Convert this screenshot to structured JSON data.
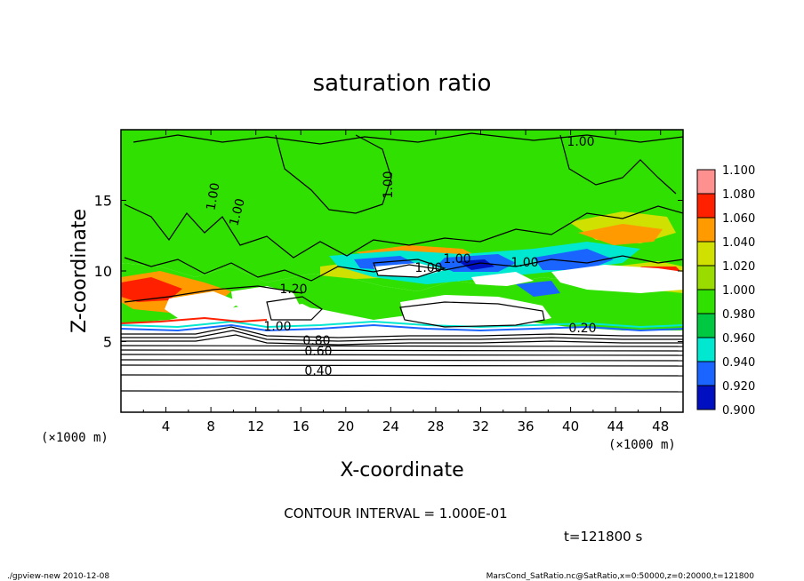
{
  "chart_data": {
    "type": "heatmap",
    "title": "saturation ratio",
    "xlabel": "X-coordinate",
    "ylabel": "Z-coordinate",
    "x_unit": "(×1000 m)",
    "y_unit": "(×1000 m)",
    "xlim": [
      0,
      50
    ],
    "ylim": [
      0,
      20
    ],
    "x_ticks": [
      4,
      8,
      12,
      16,
      20,
      24,
      28,
      32,
      36,
      40,
      44,
      48
    ],
    "y_ticks": [
      5,
      10,
      15
    ],
    "colorbar": {
      "levels": [
        "1.100",
        "1.080",
        "1.060",
        "1.040",
        "1.020",
        "1.000",
        "0.980",
        "0.960",
        "0.940",
        "0.920",
        "0.900"
      ],
      "colors": [
        "#ff9090",
        "#ff5030",
        "#ff2000",
        "#ff9a00",
        "#d0e000",
        "#30e000",
        "#00c840",
        "#00e8d0",
        "#1a64ff",
        "#0010c0",
        "#6a10b0"
      ]
    },
    "contour_labels": [
      "1.00",
      "1.00",
      "1.00",
      "1.00",
      "1.00",
      "1.00",
      "1.00",
      "1.20",
      "1.00",
      "0.80",
      "0.60",
      "0.40",
      "0.20"
    ],
    "contour_interval_text": "CONTOUR INTERVAL = 1.000E-01",
    "time_text": "t=121800 s"
  },
  "footer": {
    "left": "./gpview-new  2010-12-08",
    "right": "MarsCond_SatRatio.nc@SatRatio,x=0:50000,z=0:20000,t=121800"
  }
}
